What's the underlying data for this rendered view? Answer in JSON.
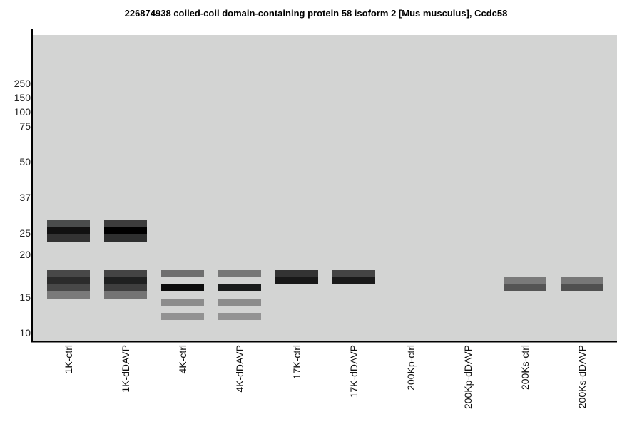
{
  "chart_data": {
    "type": "gel",
    "title": "226874938 coiled-coil domain-containing protein 58 isoform 2 [Mus musculus], Ccdc58",
    "y_markers": [
      250,
      150,
      100,
      75,
      50,
      37,
      25,
      20,
      15,
      10
    ],
    "lanes": [
      {
        "label": "1K-ctrl",
        "bands": [
          {
            "mw": 28.1,
            "color": "#4a4c4c"
          },
          {
            "mw": 25.7,
            "color": "#111111"
          },
          {
            "mw": 23.8,
            "color": "#333333"
          },
          {
            "mw": 17.75,
            "color": "#484848"
          },
          {
            "mw": 16.9,
            "color": "#2b2b2b"
          },
          {
            "mw": 16.1,
            "color": "#484848"
          },
          {
            "mw": 15.25,
            "color": "#7a7a7a"
          }
        ]
      },
      {
        "label": "1K-dDAVP",
        "bands": [
          {
            "mw": 28.1,
            "color": "#3c3c3c"
          },
          {
            "mw": 25.7,
            "color": "#000000"
          },
          {
            "mw": 23.8,
            "color": "#2e2f2f"
          },
          {
            "mw": 17.75,
            "color": "#444444"
          },
          {
            "mw": 16.9,
            "color": "#1f2020"
          },
          {
            "mw": 16.1,
            "color": "#3e3e3e"
          },
          {
            "mw": 15.25,
            "color": "#747474"
          }
        ]
      },
      {
        "label": "4K-ctrl",
        "bands": [
          {
            "mw": 17.75,
            "color": "#6e6e6e"
          },
          {
            "mw": 16.1,
            "color": "#0c0c0c"
          },
          {
            "mw": 14.3,
            "color": "#8c8c8c"
          },
          {
            "mw": 12.3,
            "color": "#929292"
          }
        ]
      },
      {
        "label": "4K-dDAVP",
        "bands": [
          {
            "mw": 17.75,
            "color": "#777777"
          },
          {
            "mw": 16.1,
            "color": "#1a1c1c"
          },
          {
            "mw": 14.3,
            "color": "#8c8c8c"
          },
          {
            "mw": 12.3,
            "color": "#939393"
          }
        ]
      },
      {
        "label": "17K-ctrl",
        "bands": [
          {
            "mw": 17.75,
            "color": "#333333"
          },
          {
            "mw": 16.9,
            "color": "#181818"
          }
        ]
      },
      {
        "label": "17K-dDAVP",
        "bands": [
          {
            "mw": 17.75,
            "color": "#444444"
          },
          {
            "mw": 16.9,
            "color": "#1a1a1a"
          }
        ]
      },
      {
        "label": "200Kp-ctrl",
        "bands": []
      },
      {
        "label": "200Kp-dDAVP",
        "bands": []
      },
      {
        "label": "200Ks-ctrl",
        "bands": [
          {
            "mw": 16.9,
            "color": "#7a7a7a"
          },
          {
            "mw": 16.1,
            "color": "#555555"
          }
        ]
      },
      {
        "label": "200Ks-dDAVP",
        "bands": [
          {
            "mw": 16.9,
            "color": "#777777"
          },
          {
            "mw": 16.1,
            "color": "#505050"
          }
        ]
      }
    ],
    "background": "#d3d4d3"
  }
}
